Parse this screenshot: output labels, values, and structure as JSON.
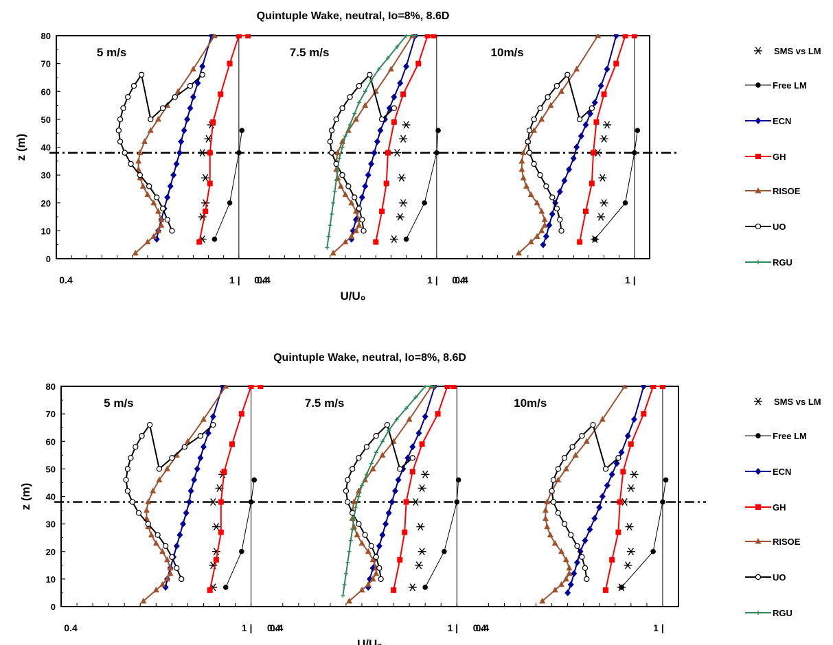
{
  "page": {
    "title": "Quintuple Wake, neutral, Io=8%, 8.6D"
  },
  "chart_data": [
    {
      "type": "line",
      "title": "Quintuple Wake, neutral, Io=8%, 8.6D",
      "xlabel": "U/U₀",
      "ylabel": "z (m)",
      "ylim": [
        0,
        80
      ],
      "yticks": [
        0,
        10,
        20,
        30,
        40,
        50,
        60,
        70,
        80
      ],
      "hub_height": 38,
      "grid": false,
      "legend_position": "right",
      "panels": [
        {
          "label": "5 m/s",
          "xlim": [
            0.4,
            1.05
          ],
          "x_tick_labels": [
            {
              "x": 0.4,
              "text": "0.4"
            },
            {
              "x": 1.0,
              "text": "1  |"
            }
          ],
          "series": [
            {
              "name": "SMS vs LM",
              "color": "#000000",
              "marker": "asterisk",
              "line": false,
              "x": [
                0.88,
                0.88,
                0.89,
                0.89,
                0.88,
                0.9,
                0.91
              ],
              "y": [
                7,
                15,
                20,
                29,
                38,
                43,
                48
              ]
            },
            {
              "name": "Free LM",
              "color": "#000000",
              "marker": "filled-circle",
              "x": [
                0.92,
                0.97,
                1.0,
                1.01
              ],
              "y": [
                7,
                20,
                38,
                46
              ]
            },
            {
              "name": "ECN",
              "color": "#000099",
              "marker": "diamond",
              "x": [
                0.73,
                0.735,
                0.745,
                0.755,
                0.765,
                0.775,
                0.785,
                0.795,
                0.805,
                0.81,
                0.82,
                0.83,
                0.84,
                0.85,
                0.865,
                0.88,
                0.91
              ],
              "y": [
                7,
                10,
                14,
                18,
                22,
                26,
                30,
                34,
                38,
                42,
                46,
                50,
                54,
                58,
                63,
                69,
                80
              ]
            },
            {
              "name": "GH",
              "color": "#ff0000",
              "marker": "square",
              "x": [
                0.87,
                0.89,
                0.905,
                0.905,
                0.915,
                0.94,
                0.97,
                1.0,
                1.03
              ],
              "y": [
                6,
                17,
                27,
                38,
                49,
                59,
                70,
                80,
                80
              ]
            },
            {
              "name": "RISOE",
              "color": "#a0522d",
              "marker": "triangle",
              "x": [
                0.66,
                0.7,
                0.72,
                0.735,
                0.745,
                0.745,
                0.735,
                0.72,
                0.7,
                0.685,
                0.675,
                0.67,
                0.67,
                0.675,
                0.69,
                0.71,
                0.735,
                0.765,
                0.8,
                0.85,
                0.92
              ],
              "y": [
                2,
                6,
                8,
                10,
                12,
                14,
                17,
                20,
                23,
                26,
                29,
                32,
                35,
                38,
                42,
                46,
                50,
                55,
                60,
                68,
                80
              ]
            },
            {
              "name": "UO",
              "color": "#000000",
              "marker": "open-circle",
              "x": [
                0.78,
                0.765,
                0.75,
                0.73,
                0.705,
                0.675,
                0.645,
                0.625,
                0.61,
                0.605,
                0.61,
                0.62,
                0.635,
                0.655,
                0.68,
                0.71,
                0.75,
                0.79,
                0.84,
                0.88
              ],
              "y": [
                10,
                14,
                18,
                22,
                26,
                30,
                34,
                38,
                42,
                46,
                50,
                54,
                58,
                62,
                66,
                50,
                54,
                58,
                62,
                66
              ]
            }
          ]
        },
        {
          "label": "7.5 m/s",
          "xlim": [
            0.4,
            1.05
          ],
          "x_tick_labels": [
            {
              "x": 0.4,
              "text": "0.4"
            },
            {
              "x": 1.0,
              "text": "1  |"
            }
          ],
          "series": [
            {
              "name": "SMS vs LM",
              "color": "#000000",
              "marker": "asterisk",
              "line": false,
              "x": [
                0.86,
                0.88,
                0.89,
                0.885,
                0.87,
                0.89,
                0.9
              ],
              "y": [
                7,
                15,
                20,
                29,
                38,
                43,
                48
              ]
            },
            {
              "name": "Free LM",
              "color": "#000000",
              "marker": "filled-circle",
              "x": [
                0.9,
                0.96,
                1.0,
                1.005
              ],
              "y": [
                7,
                20,
                38,
                46
              ]
            },
            {
              "name": "ECN",
              "color": "#000099",
              "marker": "diamond",
              "x": [
                0.72,
                0.725,
                0.735,
                0.745,
                0.755,
                0.765,
                0.775,
                0.785,
                0.795,
                0.805,
                0.815,
                0.83,
                0.845,
                0.86,
                0.88,
                0.9,
                0.93
              ],
              "y": [
                7,
                10,
                14,
                18,
                22,
                26,
                30,
                34,
                38,
                42,
                46,
                50,
                54,
                58,
                63,
                69,
                80
              ]
            },
            {
              "name": "GH",
              "color": "#ff0000",
              "marker": "square",
              "x": [
                0.8,
                0.82,
                0.835,
                0.84,
                0.86,
                0.89,
                0.94,
                0.97,
                0.99
              ],
              "y": [
                6,
                17,
                27,
                38,
                49,
                59,
                70,
                80,
                80
              ]
            },
            {
              "name": "RISOE",
              "color": "#a0522d",
              "marker": "triangle",
              "x": [
                0.66,
                0.7,
                0.72,
                0.735,
                0.745,
                0.745,
                0.735,
                0.72,
                0.7,
                0.685,
                0.675,
                0.67,
                0.67,
                0.675,
                0.69,
                0.71,
                0.735,
                0.765,
                0.8,
                0.85,
                0.92
              ],
              "y": [
                2,
                6,
                8,
                10,
                12,
                14,
                17,
                20,
                23,
                26,
                29,
                32,
                35,
                38,
                42,
                46,
                50,
                55,
                60,
                68,
                80
              ]
            },
            {
              "name": "UO",
              "color": "#000000",
              "marker": "open-circle",
              "x": [
                0.76,
                0.755,
                0.745,
                0.73,
                0.71,
                0.69,
                0.67,
                0.655,
                0.65,
                0.655,
                0.67,
                0.69,
                0.715,
                0.745,
                0.78,
                0.82,
                0.86
              ],
              "y": [
                10,
                14,
                18,
                22,
                26,
                30,
                34,
                38,
                42,
                46,
                50,
                54,
                58,
                62,
                66,
                50,
                54
              ]
            },
            {
              "name": "RGU",
              "color": "#2e8b57",
              "marker": "plus",
              "x": [
                0.64,
                0.645,
                0.65,
                0.655,
                0.66,
                0.665,
                0.67,
                0.675,
                0.68,
                0.69,
                0.7,
                0.715,
                0.73,
                0.745,
                0.765,
                0.785,
                0.81,
                0.84,
                0.87,
                0.9,
                0.93
              ],
              "y": [
                4,
                8,
                12,
                16,
                20,
                24,
                28,
                32,
                36,
                40,
                44,
                48,
                52,
                56,
                60,
                64,
                68,
                72,
                76,
                80,
                80
              ]
            }
          ]
        },
        {
          "label": "10m/s",
          "xlim": [
            0.4,
            1.05
          ],
          "x_tick_labels": [
            {
              "x": 0.4,
              "text": "0.4"
            },
            {
              "x": 1.0,
              "text": "1  |"
            }
          ],
          "series": [
            {
              "name": "SMS vs LM",
              "color": "#000000",
              "marker": "asterisk",
              "line": false,
              "x": [
                0.87,
                0.89,
                0.9,
                0.895,
                0.88,
                0.9,
                0.91
              ],
              "y": [
                7,
                15,
                20,
                29,
                38,
                43,
                48
              ]
            },
            {
              "name": "Free LM",
              "color": "#000000",
              "marker": "filled-circle",
              "x": [
                0.87,
                0.97,
                1.0,
                1.01
              ],
              "y": [
                7,
                20,
                38,
                46
              ]
            },
            {
              "name": "ECN",
              "color": "#000099",
              "marker": "diamond",
              "x": [
                0.7,
                0.71,
                0.72,
                0.73,
                0.74,
                0.755,
                0.77,
                0.785,
                0.8,
                0.81,
                0.825,
                0.84,
                0.855,
                0.87,
                0.89,
                0.91,
                0.94
              ],
              "y": [
                5,
                8,
                12,
                16,
                20,
                24,
                28,
                32,
                36,
                40,
                44,
                48,
                52,
                56,
                62,
                68,
                80
              ]
            },
            {
              "name": "GH",
              "color": "#ff0000",
              "marker": "square",
              "x": [
                0.82,
                0.84,
                0.86,
                0.865,
                0.875,
                0.9,
                0.94,
                0.97,
                1.0
              ],
              "y": [
                6,
                17,
                27,
                38,
                49,
                59,
                70,
                80,
                80
              ]
            },
            {
              "name": "RISOE",
              "color": "#a0522d",
              "marker": "triangle",
              "x": [
                0.62,
                0.66,
                0.68,
                0.695,
                0.705,
                0.705,
                0.695,
                0.68,
                0.66,
                0.645,
                0.635,
                0.63,
                0.63,
                0.635,
                0.65,
                0.67,
                0.695,
                0.725,
                0.76,
                0.81,
                0.88
              ],
              "y": [
                2,
                6,
                8,
                10,
                12,
                14,
                17,
                20,
                23,
                26,
                29,
                32,
                35,
                38,
                42,
                46,
                50,
                55,
                60,
                68,
                80
              ]
            },
            {
              "name": "UO",
              "color": "#000000",
              "marker": "open-circle",
              "x": [
                0.76,
                0.755,
                0.745,
                0.73,
                0.71,
                0.69,
                0.67,
                0.655,
                0.65,
                0.655,
                0.67,
                0.69,
                0.715,
                0.745,
                0.78,
                0.82,
                0.86
              ],
              "y": [
                10,
                14,
                18,
                22,
                26,
                30,
                34,
                38,
                42,
                46,
                50,
                54,
                58,
                62,
                66,
                50,
                54
              ]
            }
          ]
        }
      ]
    }
  ],
  "legend": [
    {
      "name": "SMS vs LM",
      "color": "#000000",
      "marker": "asterisk"
    },
    {
      "name": "Free LM",
      "color": "#000000",
      "marker": "filled-circle"
    },
    {
      "name": "ECN",
      "color": "#000099",
      "marker": "diamond"
    },
    {
      "name": "GH",
      "color": "#ff0000",
      "marker": "square"
    },
    {
      "name": "RISOE",
      "color": "#a0522d",
      "marker": "triangle"
    },
    {
      "name": "UO",
      "color": "#000000",
      "marker": "open-circle"
    },
    {
      "name": "RGU",
      "color": "#2e8b57",
      "marker": "plus"
    }
  ]
}
